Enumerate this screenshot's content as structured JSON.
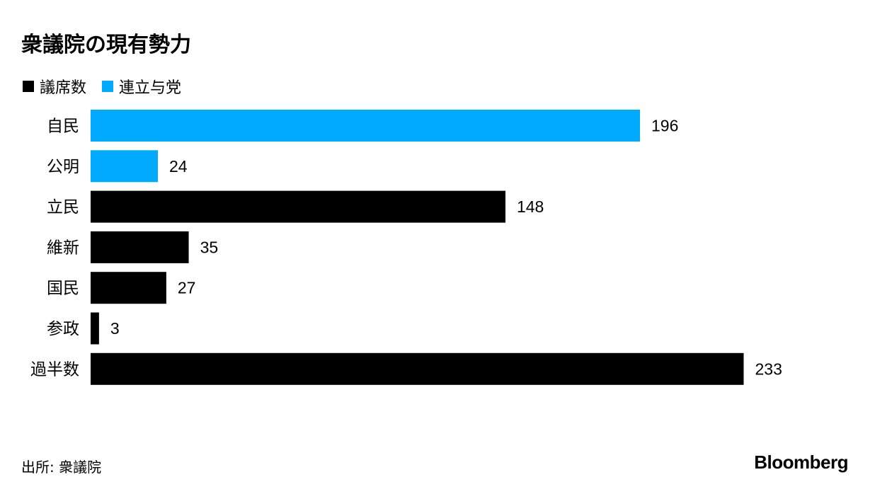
{
  "chart_data": {
    "type": "bar",
    "orientation": "horizontal",
    "title": "衆議院の現有勢力",
    "categories": [
      "自民",
      "公明",
      "立民",
      "維新",
      "国民",
      "参政",
      "過半数"
    ],
    "values": [
      196,
      24,
      148,
      35,
      27,
      3,
      233
    ],
    "colors": [
      "#00aaff",
      "#00aaff",
      "#000000",
      "#000000",
      "#000000",
      "#000000",
      "#000000"
    ],
    "legend": [
      {
        "label": "議席数",
        "color": "#000000"
      },
      {
        "label": "連立与党",
        "color": "#00aaff"
      }
    ],
    "legend_position": "top-left",
    "xlim": [
      0,
      233
    ],
    "grid": false,
    "data_labels": true
  },
  "source": "出所: 衆議院",
  "logo": "Bloomberg"
}
